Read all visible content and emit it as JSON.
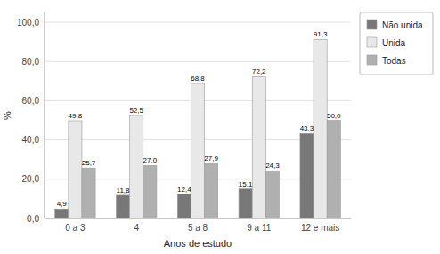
{
  "chart_data": {
    "type": "bar",
    "x_label": "Anos de estudo",
    "y_label": "%",
    "categories": [
      "0 a 3",
      "4",
      "5 a 8",
      "9 a 11",
      "12 e mais"
    ],
    "series": [
      {
        "name": "Não unida",
        "color": "#787878",
        "values": [
          4.9,
          11.8,
          12.4,
          15.1,
          43.3
        ],
        "value_labels": [
          "4,9",
          "11,8",
          "12,4",
          "15,1",
          "43,3"
        ]
      },
      {
        "name": "Unida",
        "color": "#e8e8e8",
        "values": [
          49.8,
          52.5,
          68.8,
          72.2,
          91.3
        ],
        "value_labels": [
          "49,8",
          "52,5",
          "68,8",
          "72,2",
          "91,3"
        ]
      },
      {
        "name": "Todas",
        "color": "#b0b0b0",
        "values": [
          25.7,
          27.0,
          27.9,
          24.3,
          50.0
        ],
        "value_labels": [
          "25,7",
          "27,0",
          "27,9",
          "24,3",
          "50,0"
        ]
      }
    ],
    "ylim": [
      0,
      105
    ],
    "yticks": [
      {
        "value": 0.0,
        "label": "0,0"
      },
      {
        "value": 20.0,
        "label": "20,0"
      },
      {
        "value": 40.0,
        "label": "40,0"
      },
      {
        "value": 60.0,
        "label": "60,0"
      },
      {
        "value": 80.0,
        "label": "80,0"
      },
      {
        "value": 100.0,
        "label": "100,0"
      }
    ],
    "grid": true,
    "legend": "right",
    "data_labels": true
  }
}
